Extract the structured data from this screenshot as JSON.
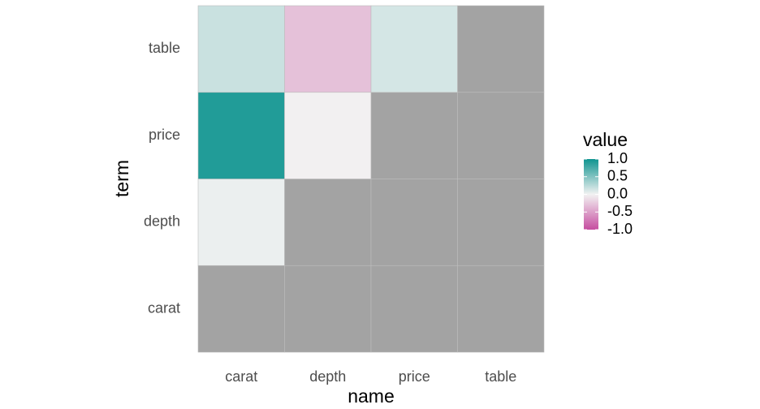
{
  "chart_data": {
    "type": "heatmap",
    "x_label": "name",
    "y_label": "term",
    "x": [
      "carat",
      "depth",
      "price",
      "table"
    ],
    "y": [
      "carat",
      "depth",
      "price",
      "table"
    ],
    "z": [
      [
        null,
        null,
        null,
        null
      ],
      [
        0.03,
        null,
        null,
        null
      ],
      [
        0.92,
        -0.01,
        null,
        null
      ],
      [
        0.18,
        -0.3,
        0.13,
        null
      ]
    ],
    "legend_title": "value",
    "colorbar_lim": [
      -1,
      1
    ],
    "colorbar_ticks": [
      {
        "value": 1,
        "label": "1.0"
      },
      0.5,
      {
        "value": 0,
        "label": "0.0"
      },
      -0.5,
      {
        "value": -1,
        "label": "-1.0"
      }
    ],
    "color_low": "#c64da0",
    "color_mid": "#f2f2f2",
    "color_high": "#0f9490",
    "na_color": "#a3a3a3"
  }
}
